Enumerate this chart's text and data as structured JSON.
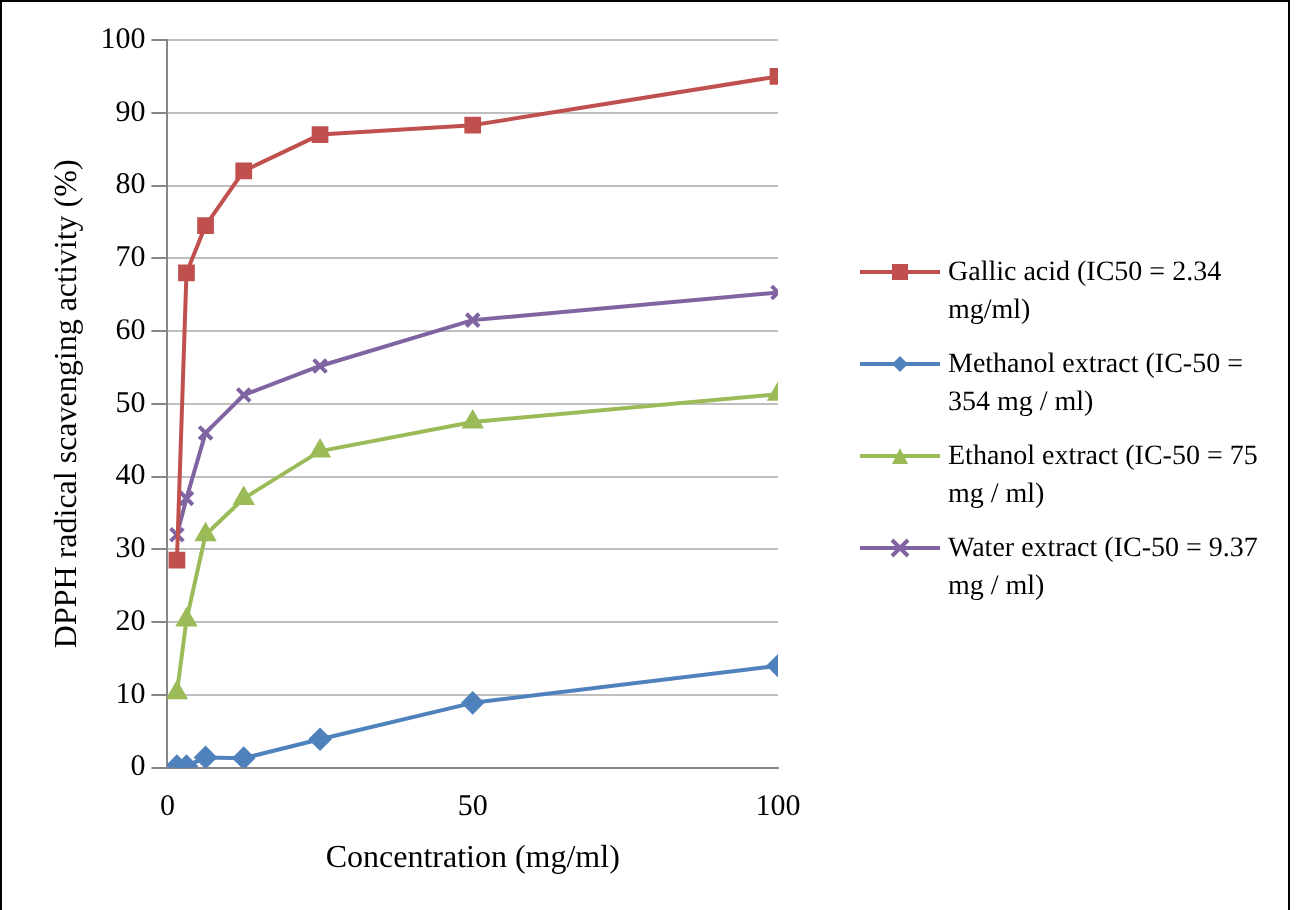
{
  "chart_data": {
    "type": "line",
    "xlabel": "Concentration (mg/ml)",
    "ylabel": "DPPH radical scavenging activity (%)",
    "x": [
      1.56,
      3.125,
      6.25,
      12.5,
      25,
      50,
      100
    ],
    "xlim": [
      0,
      100
    ],
    "xticks": [
      0,
      50,
      100
    ],
    "ylim": [
      0,
      100
    ],
    "yticks": [
      0,
      10,
      20,
      30,
      40,
      50,
      60,
      70,
      80,
      90,
      100
    ],
    "grid": "y",
    "legend": "right",
    "line_style": "solid",
    "series": [
      {
        "name": "Gallic acid (IC50 = 2.34 mg/ml)",
        "color": "#c0504d",
        "marker": "square",
        "values": [
          28.5,
          68,
          74.5,
          82,
          87,
          88.3,
          95
        ]
      },
      {
        "name": "Methanol extract (IC-50 = 354 mg / ml)",
        "color": "#4f81bd",
        "marker": "diamond",
        "values": [
          0.2,
          0.2,
          1.4,
          1.3,
          3.9,
          8.9,
          14
        ]
      },
      {
        "name": "Ethanol extract (IC-50 = 75 mg / ml)",
        "color": "#9bbb59",
        "marker": "triangle",
        "values": [
          10.3,
          20.3,
          32,
          37,
          43.5,
          47.5,
          51.3
        ]
      },
      {
        "name": "Water extract (IC-50 = 9.37 mg / ml)",
        "color": "#8064a2",
        "marker": "cross",
        "values": [
          32,
          37,
          46,
          51.2,
          55.2,
          61.5,
          65.3
        ]
      }
    ]
  }
}
